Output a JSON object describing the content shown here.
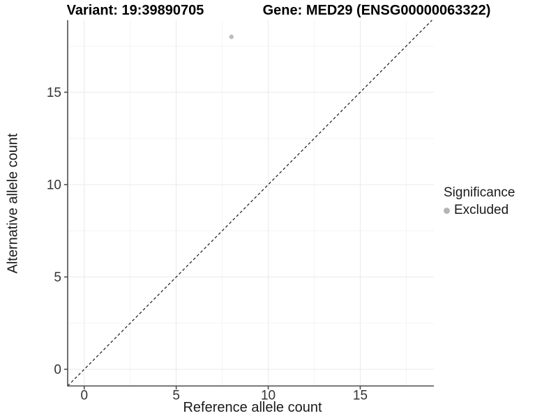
{
  "header": {
    "variant_title": "Variant: 19:39890705",
    "gene_title": "Gene: MED29 (ENSG00000063322)"
  },
  "chart_data": {
    "type": "scatter",
    "title_left": "Variant: 19:39890705",
    "title_right": "Gene: MED29 (ENSG00000063322)",
    "xlabel": "Reference allele count",
    "ylabel": "Alternative allele count",
    "xlim": [
      -0.9,
      19.0
    ],
    "ylim": [
      -0.9,
      18.9
    ],
    "xticks": [
      0,
      5,
      10,
      15
    ],
    "yticks": [
      0,
      5,
      10,
      15
    ],
    "xminor": [
      2.5,
      7.5,
      12.5,
      17.5
    ],
    "yminor": [
      2.5,
      7.5,
      12.5,
      17.5
    ],
    "grid": "major and minor gridlines, very light gray, white panel",
    "points": [
      {
        "x": 8,
        "y": 18,
        "series": "Excluded"
      }
    ],
    "point_color": "#bdbdbd",
    "point_radius": 3.2,
    "reference_line": {
      "type": "identity",
      "equation": "y = x",
      "style": "dashed",
      "color": "#1f1f1f"
    },
    "legend": {
      "title": "Significance",
      "position": "right",
      "items": [
        {
          "label": "Excluded",
          "color": "#b5b5b5",
          "marker": "circle"
        }
      ]
    }
  },
  "colors": {
    "axis_line": "#4d4d4d",
    "tick_label": "#333333",
    "grid_major": "#e9e9e9",
    "grid_minor": "#f4f4f4",
    "background": "#ffffff",
    "title_text": "#000000"
  }
}
